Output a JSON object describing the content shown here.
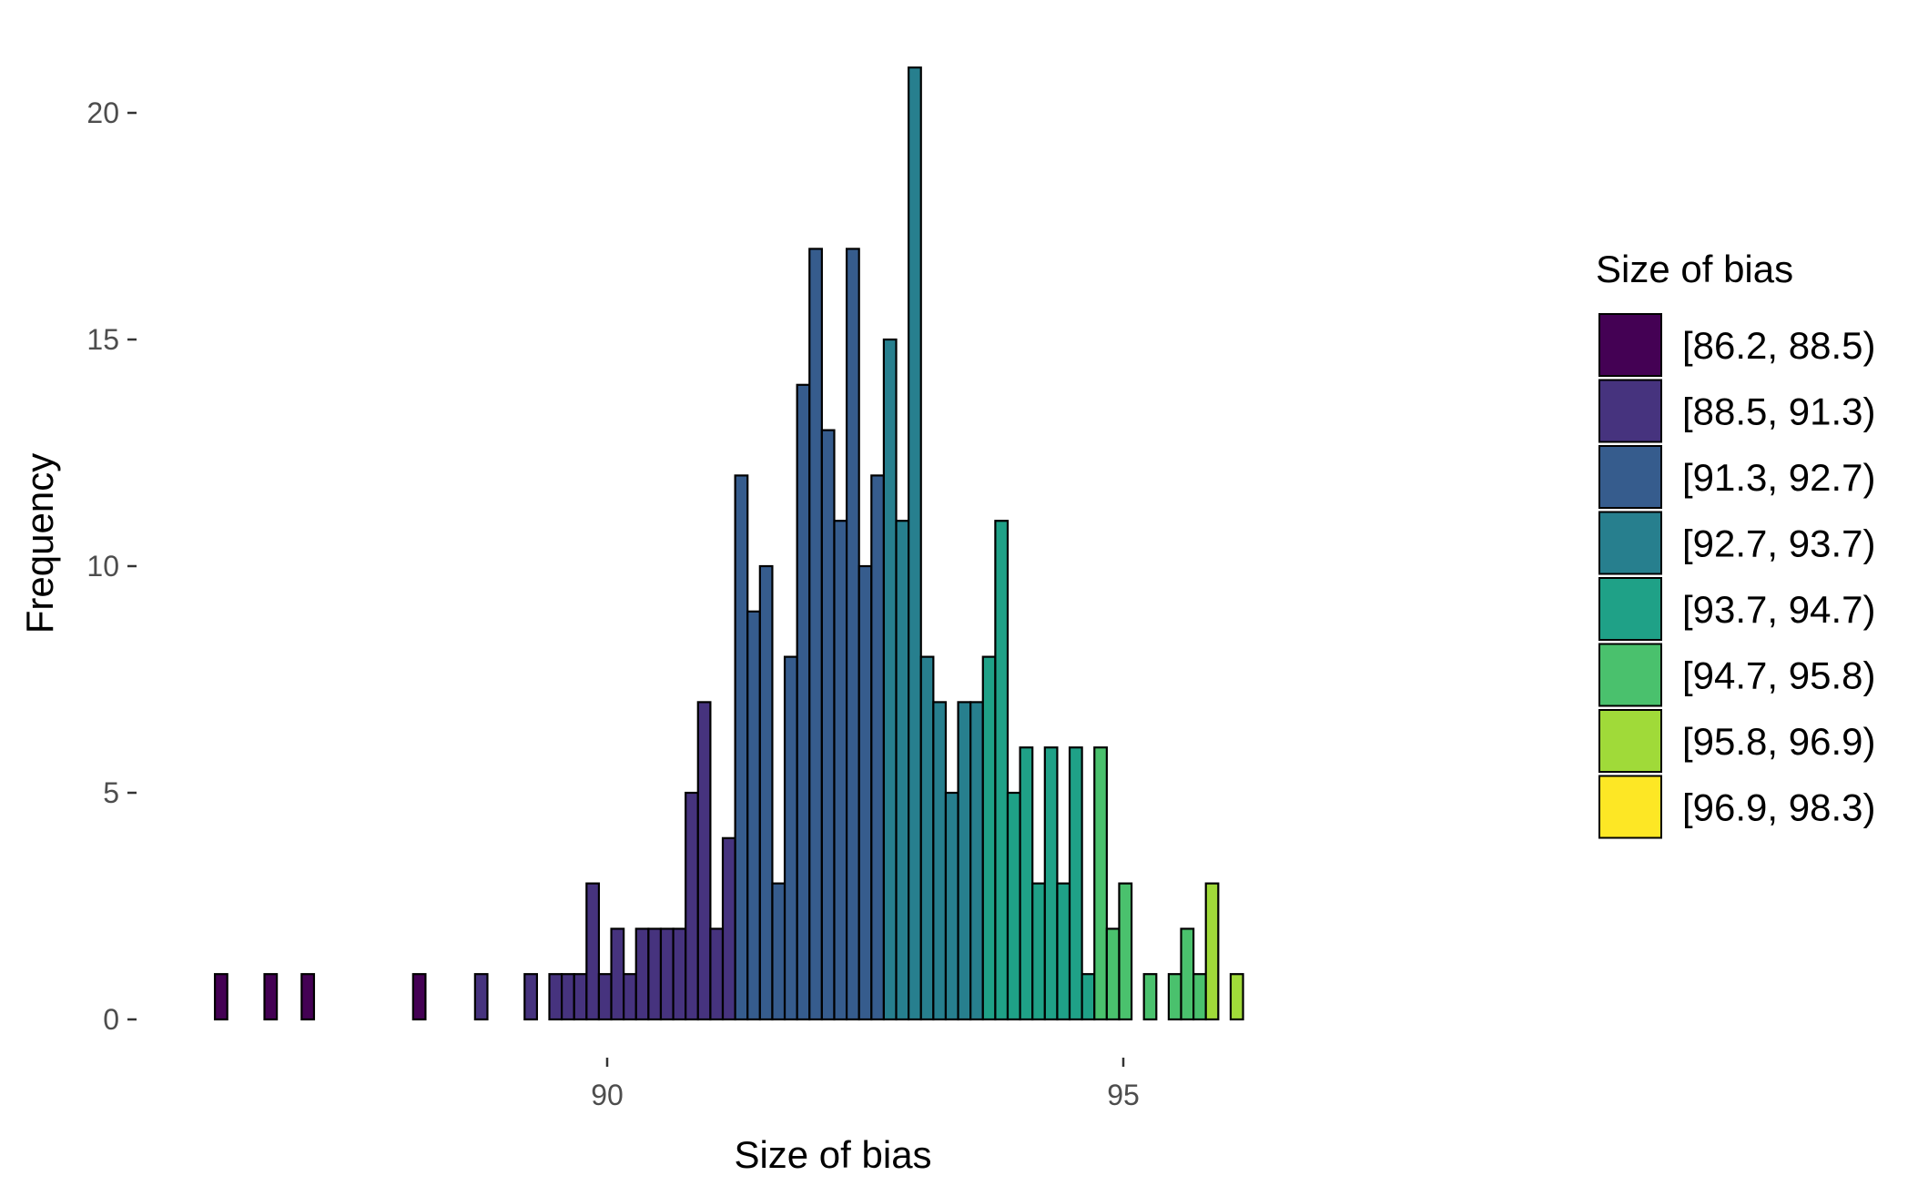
{
  "chart_data": {
    "type": "bar",
    "subtype": "histogram",
    "xlabel": "Size of bias",
    "ylabel": "Frequency",
    "xlim": [
      86.0,
      98.5
    ],
    "ylim": [
      0,
      21
    ],
    "x_ticks": [
      90,
      95
    ],
    "y_ticks": [
      0,
      5,
      10,
      15,
      20
    ],
    "grid": false,
    "bin_width": 0.12,
    "first_bin_start": 86.2,
    "counts": [
      1,
      0,
      0,
      0,
      1,
      0,
      0,
      1,
      0,
      0,
      0,
      0,
      0,
      0,
      0,
      0,
      1,
      0,
      0,
      0,
      0,
      1,
      0,
      0,
      0,
      1,
      0,
      1,
      1,
      1,
      3,
      1,
      2,
      1,
      2,
      2,
      2,
      2,
      5,
      7,
      2,
      4,
      12,
      9,
      10,
      3,
      8,
      14,
      17,
      13,
      11,
      17,
      10,
      12,
      15,
      11,
      21,
      8,
      7,
      5,
      7,
      7,
      8,
      11,
      5,
      6,
      3,
      6,
      3,
      6,
      1,
      6,
      2,
      3,
      0,
      1,
      0,
      1,
      2,
      1,
      3,
      0,
      1
    ],
    "legend": {
      "title": "Size of bias",
      "position": "right",
      "items": [
        {
          "label": "[86.2, 88.5)",
          "lo": 86.2,
          "hi": 88.5,
          "color": "#440154"
        },
        {
          "label": "[88.5, 91.3)",
          "lo": 88.5,
          "hi": 91.3,
          "color": "#46337E"
        },
        {
          "label": "[91.3, 92.7)",
          "lo": 91.3,
          "hi": 92.7,
          "color": "#365C8D"
        },
        {
          "label": "[92.7, 93.7)",
          "lo": 92.7,
          "hi": 93.7,
          "color": "#277F8E"
        },
        {
          "label": "[93.7, 94.7)",
          "lo": 93.7,
          "hi": 94.7,
          "color": "#1FA187"
        },
        {
          "label": "[94.7, 95.8)",
          "lo": 94.7,
          "hi": 95.8,
          "color": "#4AC16D"
        },
        {
          "label": "[95.8, 96.9)",
          "lo": 95.8,
          "hi": 96.9,
          "color": "#A0DA39"
        },
        {
          "label": "[96.9, 98.3)",
          "lo": 96.9,
          "hi": 98.3,
          "color": "#FDE725"
        }
      ]
    }
  }
}
